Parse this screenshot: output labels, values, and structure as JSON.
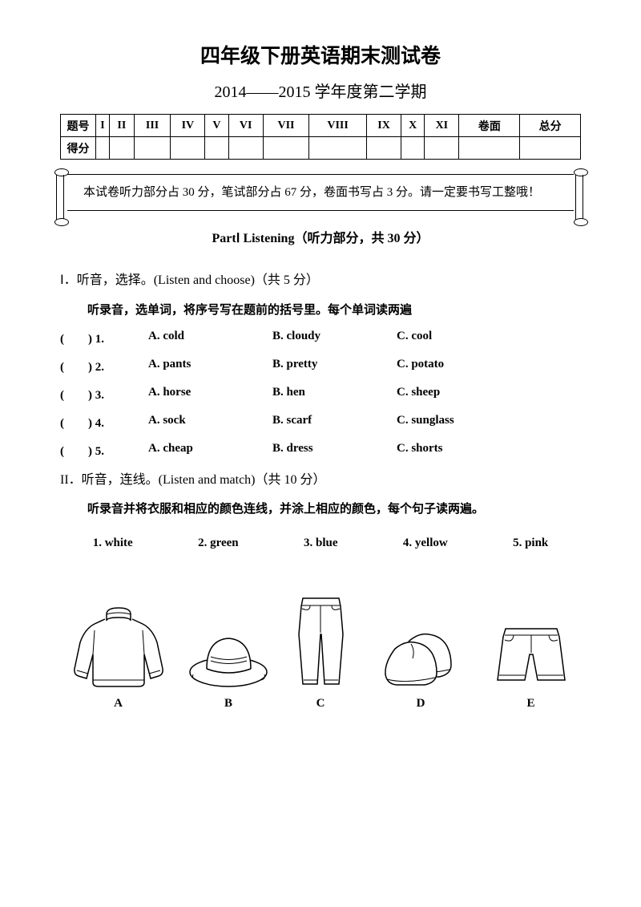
{
  "header": {
    "main_title": "四年级下册英语期末测试卷",
    "sub_title": "2014——2015 学年度第二学期"
  },
  "score_table": {
    "row1": [
      "题号",
      "I",
      "II",
      "III",
      "IV",
      "V",
      "VI",
      "VII",
      "VIII",
      "IX",
      "X",
      "XI",
      "卷面",
      "总分"
    ],
    "row2_label": "得分"
  },
  "instruction": "本试卷听力部分占 30 分，笔试部分占 67 分，卷面书写占 3 分。请一定要书写工整哦！",
  "part_title": "PartⅠ Listening（听力部分，共 30 分）",
  "section1": {
    "title": "Ⅰ．听音，选择。(Listen and choose)（共 5 分）",
    "sub": "听录音，选单词，将序号写在题前的括号里。每个单词读两遍",
    "questions": [
      {
        "num": "(　　) 1.",
        "a": "A. cold",
        "b": "B. cloudy",
        "c": "C. cool"
      },
      {
        "num": "(　　) 2.",
        "a": "A. pants",
        "b": "B. pretty",
        "c": "C. potato"
      },
      {
        "num": "(　　) 3.",
        "a": "A. horse",
        "b": "B. hen",
        "c": "C. sheep"
      },
      {
        "num": "(　　) 4.",
        "a": "A. sock",
        "b": "B. scarf",
        "c": "C. sunglass"
      },
      {
        "num": "(　　) 5.",
        "a": "A. cheap",
        "b": "B. dress",
        "c": "C. shorts"
      }
    ]
  },
  "section2": {
    "title": "II．听音，连线。(Listen and match)（共 10 分）",
    "sub": "听录音并将衣服和相应的颜色连线，并涂上相应的颜色，每个句子读两遍。",
    "colors": [
      "1. white",
      "2. green",
      "3. blue",
      "4. yellow",
      "5. pink"
    ],
    "labels": [
      "A",
      "B",
      "C",
      "D",
      "E"
    ]
  }
}
